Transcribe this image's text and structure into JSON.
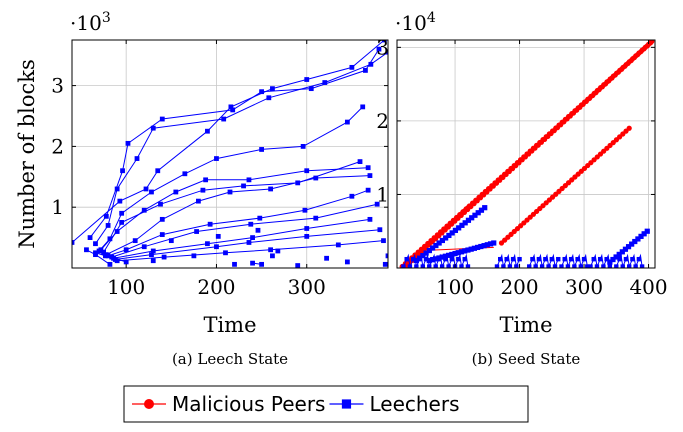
{
  "colors": {
    "malicious": "#ff0000",
    "leechers": "#0000ff",
    "grid": "#c8c8c8",
    "axis": "#000000"
  },
  "legend": {
    "items": [
      {
        "label": "Malicious Peers",
        "color": "#ff0000",
        "marker": "circle"
      },
      {
        "label": "Leechers",
        "color": "#0000ff",
        "marker": "square"
      }
    ]
  },
  "chart_data": [
    {
      "type": "line",
      "caption": "(a) Leech State",
      "xlabel": "Time",
      "ylabel": "Number of blocks",
      "multiplier": "·10",
      "multiplier_exp": "3",
      "xlim": [
        40,
        390
      ],
      "ylim": [
        0,
        3.75
      ],
      "xticks": [
        100,
        200,
        300
      ],
      "yticks": [
        1,
        2,
        3
      ],
      "grid": true,
      "series": [
        {
          "color": "#0000ff",
          "marker": "square",
          "points": [
            [
              40,
              0.42
            ],
            [
              93,
              1.1
            ],
            [
              122,
              1.3
            ],
            [
              135,
              1.6
            ],
            [
              190,
              2.25
            ],
            [
              216,
              2.65
            ],
            [
              262,
              2.95
            ],
            [
              300,
              3.1
            ],
            [
              350,
              3.3
            ],
            [
              386,
              3.75
            ]
          ]
        },
        {
          "color": "#0000ff",
          "marker": "square",
          "points": [
            [
              60,
              0.5
            ],
            [
              78,
              0.85
            ],
            [
              96,
              1.6
            ],
            [
              102,
              2.05
            ],
            [
              140,
              2.45
            ],
            [
              218,
              2.6
            ],
            [
              250,
              2.9
            ],
            [
              305,
              2.95
            ],
            [
              365,
              3.25
            ],
            [
              380,
              3.6
            ]
          ]
        },
        {
          "color": "#0000ff",
          "marker": "square",
          "points": [
            [
              66,
              0.4
            ],
            [
              80,
              0.7
            ],
            [
              90,
              1.3
            ],
            [
              112,
              1.8
            ],
            [
              130,
              2.3
            ],
            [
              208,
              2.45
            ],
            [
              258,
              2.8
            ],
            [
              320,
              3.05
            ],
            [
              371,
              3.35
            ],
            [
              390,
              3.55
            ]
          ]
        },
        {
          "color": "#0000ff",
          "marker": "square",
          "points": [
            [
              70,
              0.28
            ],
            [
              82,
              0.48
            ],
            [
              95,
              0.9
            ],
            [
              128,
              1.25
            ],
            [
              165,
              1.55
            ],
            [
              200,
              1.8
            ],
            [
              250,
              1.95
            ],
            [
              296,
              2.0
            ],
            [
              345,
              2.4
            ],
            [
              362,
              2.65
            ]
          ]
        },
        {
          "color": "#0000ff",
          "marker": "square",
          "points": [
            [
              72,
              0.3
            ],
            [
              90,
              0.6
            ],
            [
              120,
              0.95
            ],
            [
              155,
              1.25
            ],
            [
              188,
              1.45
            ],
            [
              236,
              1.45
            ],
            [
              300,
              1.6
            ],
            [
              368,
              1.65
            ]
          ]
        },
        {
          "color": "#0000ff",
          "marker": "square",
          "points": [
            [
              75,
              0.26
            ],
            [
              95,
              0.75
            ],
            [
              138,
              1.05
            ],
            [
              185,
              1.28
            ],
            [
              230,
              1.35
            ],
            [
              290,
              1.4
            ],
            [
              359,
              1.75
            ]
          ]
        },
        {
          "color": "#0000ff",
          "marker": "square",
          "points": [
            [
              78,
              0.22
            ],
            [
              110,
              0.45
            ],
            [
              140,
              0.8
            ],
            [
              180,
              1.1
            ],
            [
              215,
              1.25
            ],
            [
              260,
              1.3
            ],
            [
              310,
              1.48
            ],
            [
              370,
              1.52
            ]
          ]
        },
        {
          "color": "#0000ff",
          "marker": "square",
          "points": [
            [
              80,
              0.2
            ],
            [
              100,
              0.3
            ],
            [
              140,
              0.55
            ],
            [
              193,
              0.72
            ],
            [
              248,
              0.82
            ],
            [
              298,
              0.95
            ],
            [
              350,
              1.18
            ],
            [
              368,
              1.28
            ]
          ]
        },
        {
          "color": "#0000ff",
          "marker": "square",
          "points": [
            [
              84,
              0.18
            ],
            [
              120,
              0.35
            ],
            [
              178,
              0.6
            ],
            [
              238,
              0.72
            ],
            [
              310,
              0.82
            ],
            [
              378,
              1.05
            ]
          ]
        },
        {
          "color": "#0000ff",
          "marker": "square",
          "points": [
            [
              86,
              0.16
            ],
            [
              130,
              0.28
            ],
            [
              190,
              0.4
            ],
            [
              240,
              0.5
            ],
            [
              300,
              0.65
            ],
            [
              370,
              0.8
            ]
          ]
        },
        {
          "color": "#0000ff",
          "marker": "square",
          "points": [
            [
              88,
              0.14
            ],
            [
              128,
              0.22
            ],
            [
              200,
              0.35
            ],
            [
              236,
              0.42
            ],
            [
              300,
              0.52
            ],
            [
              381,
              0.63
            ]
          ]
        },
        {
          "color": "#0000ff",
          "marker": "square",
          "points": [
            [
              90,
              0.12
            ],
            [
              142,
              0.18
            ],
            [
              210,
              0.25
            ],
            [
              260,
              0.3
            ],
            [
              335,
              0.38
            ],
            [
              385,
              0.45
            ]
          ]
        },
        {
          "color": "#0000ff",
          "marker": "square",
          "points": [
            [
              66,
              0.25
            ],
            [
              77,
              0.2
            ],
            [
              100,
              0.1
            ]
          ]
        },
        {
          "color": "#0000ff",
          "marker": "square",
          "points": [
            [
              56,
              0.3
            ],
            [
              66,
              0.22
            ],
            [
              82,
              0.06
            ]
          ]
        },
        {
          "color": "#0000ff",
          "marker": "square",
          "points": [
            [
              240,
              0.08
            ],
            [
              250,
              0.06
            ]
          ]
        }
      ],
      "scatter": {
        "color": "#0000ff",
        "marker": "square",
        "points": [
          [
            130,
            0.12
          ],
          [
            175,
            0.2
          ],
          [
            220,
            0.06
          ],
          [
            268,
            0.28
          ],
          [
            290,
            0.04
          ],
          [
            345,
            0.1
          ],
          [
            387,
            0.06
          ],
          [
            390,
            0.2
          ],
          [
            150,
            0.45
          ],
          [
            202,
            0.52
          ],
          [
            262,
            0.2
          ],
          [
            322,
            0.16
          ],
          [
            246,
            0.62
          ]
        ]
      }
    },
    {
      "type": "line",
      "caption": "(b) Seed State",
      "xlabel": "Time",
      "ylabel": "",
      "multiplier": "·10",
      "multiplier_exp": "4",
      "xlim": [
        10,
        410
      ],
      "ylim": [
        0,
        3.1
      ],
      "xticks": [
        100,
        200,
        300,
        400
      ],
      "yticks": [
        1,
        2,
        3
      ],
      "grid": true,
      "series": [
        {
          "name": "Malicious Peers",
          "color": "#ff0000",
          "marker": "circle",
          "dense": true,
          "points": [
            [
              18,
              0.02
            ],
            [
              405,
              3.08
            ]
          ]
        },
        {
          "name": "Malicious Peers",
          "color": "#ff0000",
          "marker": "circle",
          "dense": true,
          "points": [
            [
              30,
              0.08
            ],
            [
              403,
              3.06
            ]
          ]
        },
        {
          "name": "Malicious Peers",
          "color": "#ff0000",
          "marker": "circle",
          "dense": true,
          "points": [
            [
              24,
              0.02
            ],
            [
              120,
              0.82
            ]
          ]
        },
        {
          "name": "Malicious Peers",
          "color": "#ff0000",
          "marker": "circle",
          "dense": true,
          "points": [
            [
              172,
              0.34
            ],
            [
              370,
              1.9
            ]
          ]
        },
        {
          "name": "Malicious Peers",
          "color": "#ff0000",
          "marker": "none",
          "dense": false,
          "points": [
            [
              60,
              0.24
            ],
            [
              160,
              0.28
            ]
          ]
        },
        {
          "name": "Leechers",
          "color": "#0000ff",
          "marker": "square",
          "dense": true,
          "points": [
            [
              40,
              0.1
            ],
            [
              146,
              0.82
            ]
          ]
        },
        {
          "name": "Leechers",
          "color": "#0000ff",
          "marker": "square",
          "dense": true,
          "points": [
            [
              60,
              0.1
            ],
            [
              160,
              0.34
            ]
          ]
        },
        {
          "name": "Leechers",
          "color": "#0000ff",
          "marker": "square",
          "dense": true,
          "points": [
            [
              340,
              0.08
            ],
            [
              398,
              0.5
            ]
          ]
        }
      ],
      "steps": {
        "color": "#0000ff",
        "ranges": [
          [
            20,
            120
          ],
          [
            165,
            200
          ],
          [
            215,
            260
          ],
          [
            265,
            305
          ],
          [
            310,
            345
          ],
          [
            350,
            390
          ]
        ]
      }
    }
  ]
}
